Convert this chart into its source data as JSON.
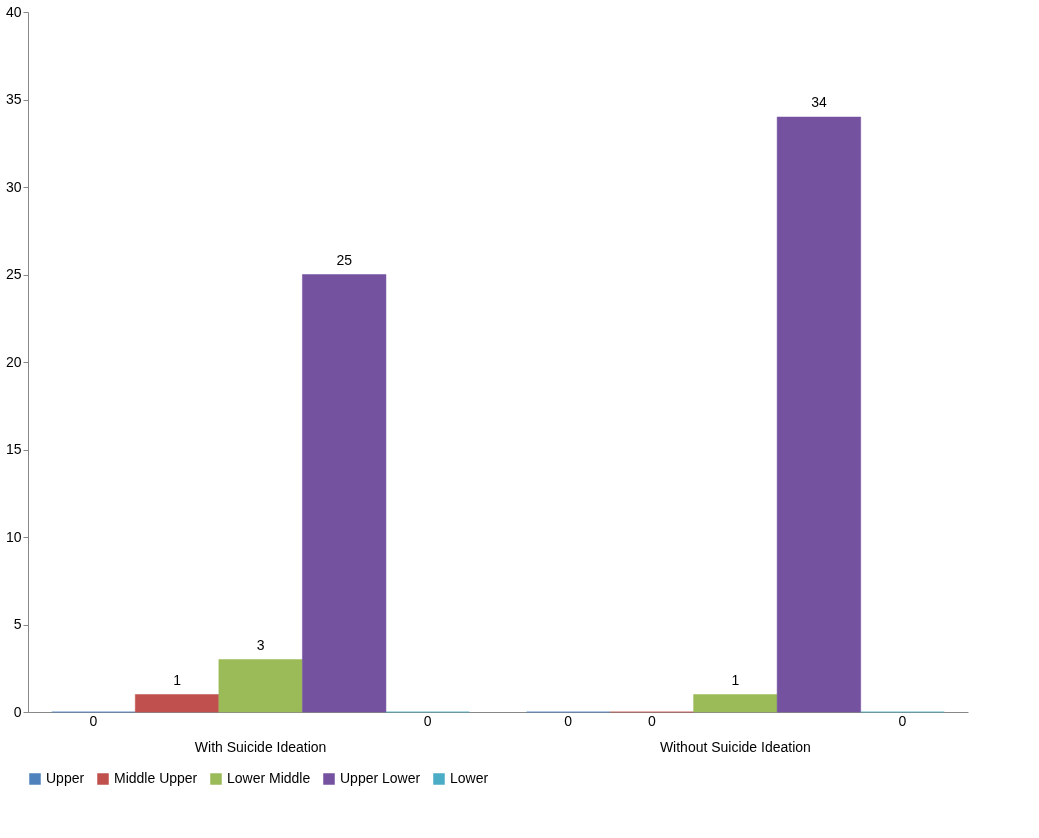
{
  "chart_data": {
    "type": "bar",
    "categories": [
      "With Suicide Ideation",
      "Without Suicide Ideation"
    ],
    "series": [
      {
        "name": "Upper",
        "color": "#4f81bd",
        "values": [
          0,
          0
        ]
      },
      {
        "name": "Middle Upper",
        "color": "#c0504d",
        "values": [
          1,
          0
        ]
      },
      {
        "name": "Lower Middle",
        "color": "#9bbb59",
        "values": [
          3,
          1
        ]
      },
      {
        "name": "Upper Lower",
        "color": "#7552a0",
        "values": [
          25,
          34
        ]
      },
      {
        "name": "Lower",
        "color": "#4bacc6",
        "values": [
          0,
          0
        ]
      }
    ],
    "ylim": [
      0,
      40
    ],
    "yticks": [
      0,
      5,
      10,
      15,
      20,
      25,
      30,
      35,
      40
    ],
    "grid": false,
    "legend": "bottom",
    "data_labels": true
  }
}
